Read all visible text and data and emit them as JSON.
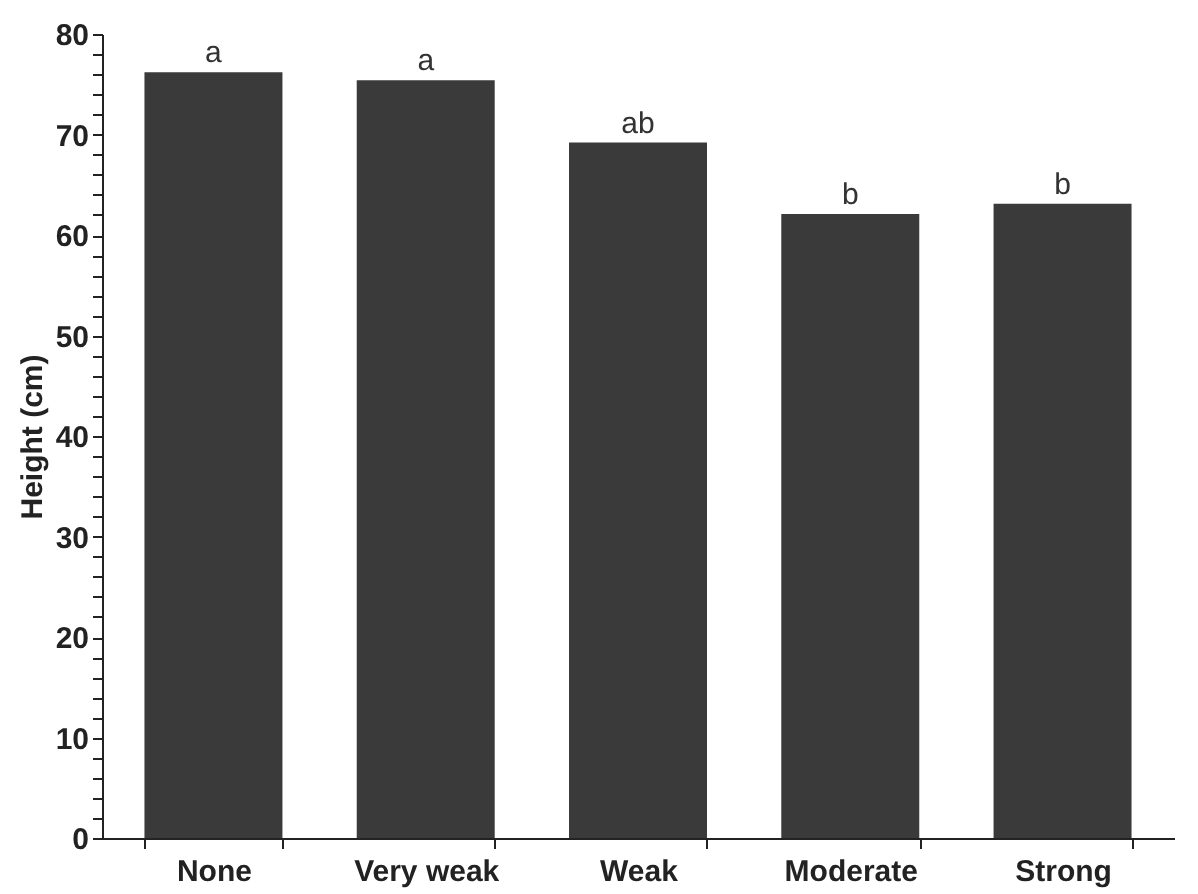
{
  "chart_data": {
    "type": "bar",
    "ylabel": "Height (cm)",
    "categories": [
      "None",
      "Very weak",
      "Weak",
      "Moderate",
      "Strong"
    ],
    "values": [
      76.2,
      75.4,
      69.2,
      62.1,
      63.1
    ],
    "color": "#3a3a3a",
    "ylim": [
      0,
      80
    ],
    "yticks": [
      0,
      {
        "value": 2,
        "label": null
      },
      {
        "value": 4,
        "label": null
      },
      {
        "value": 6,
        "label": null
      },
      {
        "value": 8,
        "label": null
      },
      10,
      {
        "value": 12,
        "label": null
      },
      {
        "value": 14,
        "label": null
      },
      {
        "value": 16,
        "label": null
      },
      {
        "value": 18,
        "label": null
      },
      20,
      {
        "value": 22,
        "label": null
      },
      {
        "value": 24,
        "label": null
      },
      {
        "value": 26,
        "label": null
      },
      {
        "value": 28,
        "label": null
      },
      30,
      {
        "value": 32,
        "label": null
      },
      {
        "value": 34,
        "label": null
      },
      {
        "value": 36,
        "label": null
      },
      {
        "value": 38,
        "label": null
      },
      40,
      {
        "value": 42,
        "label": null
      },
      {
        "value": 44,
        "label": null
      },
      {
        "value": 46,
        "label": null
      },
      {
        "value": 48,
        "label": null
      },
      50,
      {
        "value": 52,
        "label": null
      },
      {
        "value": 54,
        "label": null
      },
      {
        "value": 56,
        "label": null
      },
      {
        "value": 58,
        "label": null
      },
      60,
      {
        "value": 62,
        "label": null
      },
      {
        "value": 64,
        "label": null
      },
      {
        "value": 66,
        "label": null
      },
      {
        "value": 68,
        "label": null
      },
      70,
      {
        "value": 72,
        "label": null
      },
      {
        "value": 74,
        "label": null
      },
      {
        "value": 76,
        "label": null
      },
      {
        "value": 78,
        "label": null
      },
      80
    ],
    "grid": false,
    "annotations": [
      {
        "text": "a",
        "x": "None",
        "y": 76.2
      },
      {
        "text": "a",
        "x": "Very weak",
        "y": 75.4
      },
      {
        "text": "ab",
        "x": "Weak",
        "y": 69.2
      },
      {
        "text": "b",
        "x": "Moderate",
        "y": 62.1
      },
      {
        "text": "b",
        "x": "Strong",
        "y": 63.1
      }
    ]
  }
}
